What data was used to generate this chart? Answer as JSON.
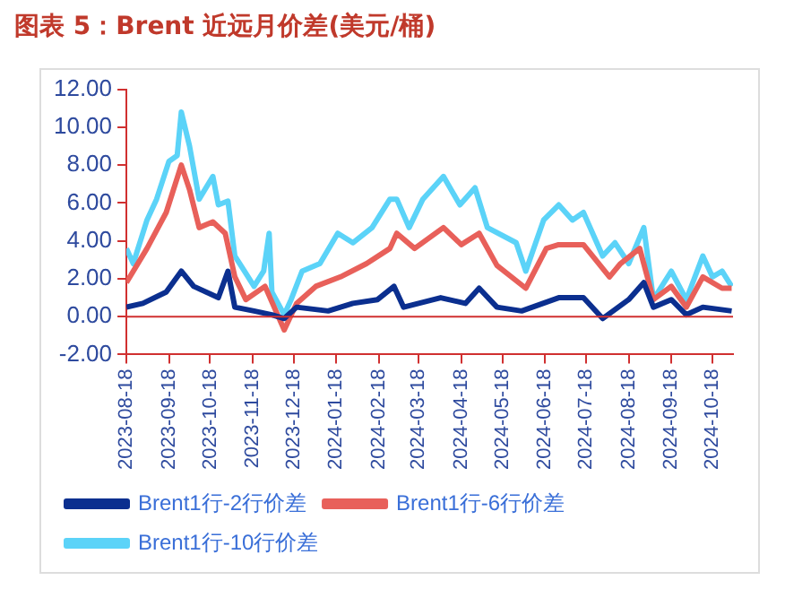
{
  "chart_data": {
    "type": "line",
    "title": "图表 5：Brent 近远月价差(美元/桶)",
    "xlim": [
      "2023-08-18",
      "2024-11-02"
    ],
    "xticks": [
      "2023-08-18",
      "2023-09-18",
      "2023-10-18",
      "2023-11-18",
      "2023-12-18",
      "2024-01-18",
      "2024-02-18",
      "2024-03-18",
      "2024-04-18",
      "2024-05-18",
      "2024-06-18",
      "2024-07-18",
      "2024-08-18",
      "2024-09-18",
      "2024-10-18"
    ],
    "ylim": [
      -2,
      12
    ],
    "yticks": [
      {
        "value": -2,
        "label": "-2.00"
      },
      {
        "value": 0,
        "label": "0.00"
      },
      {
        "value": 2,
        "label": "2.00"
      },
      {
        "value": 4,
        "label": "4.00"
      },
      {
        "value": 6,
        "label": "6.00"
      },
      {
        "value": 8,
        "label": "8.00"
      },
      {
        "value": 10,
        "label": "10.00"
      },
      {
        "value": 12,
        "label": "12.00"
      }
    ],
    "ref_lines": [
      {
        "axis": "y",
        "value": 0,
        "color": "#d03030"
      }
    ],
    "grid": false,
    "legend": "bottom",
    "marker": "none",
    "line_style": "solid",
    "series": [
      {
        "name": "Brent1行-2行价差",
        "color": "#0b2f8f",
        "x": [
          "2023-08-18",
          "2023-08-30",
          "2023-09-16",
          "2023-09-27",
          "2023-10-06",
          "2023-10-24",
          "2023-10-31",
          "2023-11-05",
          "2023-11-19",
          "2023-12-02",
          "2023-12-11",
          "2023-12-20",
          "2024-01-12",
          "2024-01-30",
          "2024-02-17",
          "2024-02-29",
          "2024-03-07",
          "2024-04-03",
          "2024-04-21",
          "2024-05-01",
          "2024-05-14",
          "2024-06-01",
          "2024-06-28",
          "2024-07-16",
          "2024-07-30",
          "2024-08-18",
          "2024-08-29",
          "2024-09-05",
          "2024-09-18",
          "2024-09-29",
          "2024-10-11",
          "2024-11-01"
        ],
        "values": [
          0.5,
          0.7,
          1.3,
          2.4,
          1.6,
          1.0,
          2.4,
          0.5,
          0.3,
          0.1,
          -0.1,
          0.5,
          0.3,
          0.7,
          0.9,
          1.6,
          0.5,
          1.0,
          0.7,
          1.5,
          0.5,
          0.3,
          1.0,
          1.0,
          -0.1,
          0.9,
          1.8,
          0.5,
          0.9,
          0.1,
          0.5,
          0.3
        ]
      },
      {
        "name": "Brent1行-6行价差",
        "color": "#e8605a",
        "x": [
          "2023-08-18",
          "2023-09-02",
          "2023-09-16",
          "2023-09-27",
          "2023-10-03",
          "2023-10-10",
          "2023-10-20",
          "2023-10-29",
          "2023-11-05",
          "2023-11-13",
          "2023-11-27",
          "2023-12-11",
          "2023-12-20",
          "2024-01-03",
          "2024-01-21",
          "2024-02-09",
          "2024-02-26",
          "2024-03-02",
          "2024-03-15",
          "2024-04-05",
          "2024-04-18",
          "2024-05-01",
          "2024-05-14",
          "2024-06-04",
          "2024-06-19",
          "2024-06-28",
          "2024-07-16",
          "2024-08-04",
          "2024-08-12",
          "2024-08-26",
          "2024-09-05",
          "2024-09-18",
          "2024-09-29",
          "2024-10-11",
          "2024-10-25",
          "2024-11-01"
        ],
        "values": [
          1.8,
          3.6,
          5.5,
          8.0,
          6.7,
          4.7,
          5.0,
          4.4,
          2.1,
          0.9,
          1.6,
          -0.7,
          0.7,
          1.6,
          2.1,
          2.8,
          3.6,
          4.4,
          3.6,
          4.7,
          3.8,
          4.4,
          2.7,
          1.5,
          3.6,
          3.8,
          3.8,
          2.1,
          2.8,
          3.6,
          0.9,
          1.6,
          0.5,
          2.1,
          1.5,
          1.5
        ]
      },
      {
        "name": "Brent1行-10行价差",
        "color": "#5bd3f8",
        "x": [
          "2023-08-18",
          "2023-08-23",
          "2023-09-02",
          "2023-09-09",
          "2023-09-18",
          "2023-09-24",
          "2023-09-27",
          "2023-10-03",
          "2023-10-10",
          "2023-10-20",
          "2023-10-24",
          "2023-10-31",
          "2023-11-05",
          "2023-11-12",
          "2023-11-19",
          "2023-11-26",
          "2023-11-30",
          "2023-12-02",
          "2023-12-11",
          "2023-12-16",
          "2023-12-24",
          "2024-01-06",
          "2024-01-19",
          "2024-01-30",
          "2024-02-13",
          "2024-02-26",
          "2024-03-02",
          "2024-03-11",
          "2024-03-21",
          "2024-04-05",
          "2024-04-17",
          "2024-04-28",
          "2024-05-07",
          "2024-05-28",
          "2024-06-04",
          "2024-06-17",
          "2024-06-28",
          "2024-07-08",
          "2024-07-16",
          "2024-07-30",
          "2024-08-08",
          "2024-08-18",
          "2024-08-29",
          "2024-09-05",
          "2024-09-18",
          "2024-09-29",
          "2024-10-11",
          "2024-10-18",
          "2024-10-25",
          "2024-11-01"
        ],
        "values": [
          3.6,
          2.8,
          5.1,
          6.2,
          8.2,
          8.5,
          10.8,
          9.0,
          6.2,
          7.4,
          5.9,
          6.1,
          3.2,
          2.4,
          1.6,
          2.4,
          4.4,
          1.3,
          0.1,
          0.9,
          2.4,
          2.8,
          4.4,
          3.9,
          4.7,
          6.2,
          6.2,
          4.7,
          6.2,
          7.4,
          5.9,
          6.8,
          4.7,
          3.9,
          2.4,
          5.1,
          5.9,
          5.1,
          5.5,
          3.2,
          3.9,
          2.8,
          4.7,
          0.9,
          2.4,
          0.9,
          3.2,
          2.1,
          2.4,
          1.6
        ]
      }
    ]
  }
}
